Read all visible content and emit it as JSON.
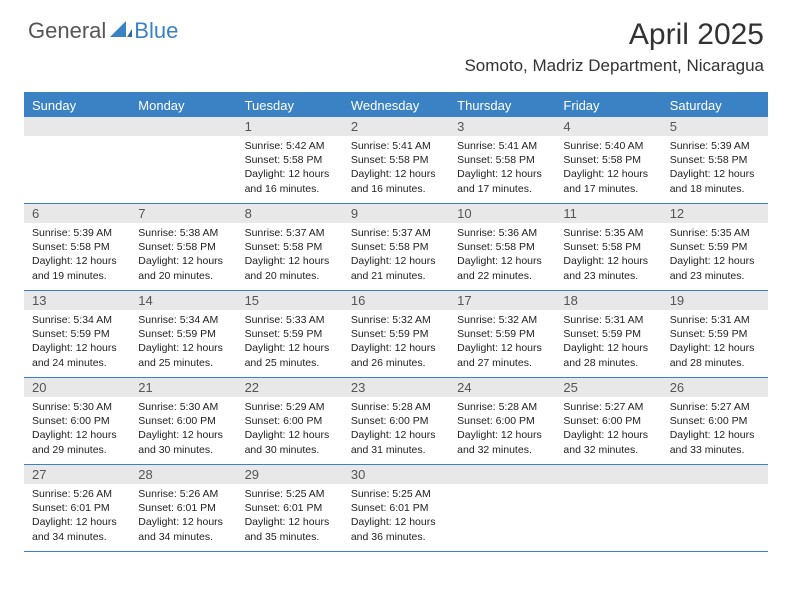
{
  "brand": {
    "general": "General",
    "blue": "Blue"
  },
  "title": "April 2025",
  "location": "Somoto, Madriz Department, Nicaragua",
  "colors": {
    "accent": "#3b82c4",
    "header_bg": "#3b82c4",
    "header_text": "#ffffff",
    "daynum_bg": "#e8e8e8",
    "text": "#222222",
    "background": "#ffffff"
  },
  "day_headers": [
    "Sunday",
    "Monday",
    "Tuesday",
    "Wednesday",
    "Thursday",
    "Friday",
    "Saturday"
  ],
  "weeks": [
    [
      null,
      null,
      {
        "n": "1",
        "sr": "5:42 AM",
        "ss": "5:58 PM",
        "dl": "12 hours and 16 minutes."
      },
      {
        "n": "2",
        "sr": "5:41 AM",
        "ss": "5:58 PM",
        "dl": "12 hours and 16 minutes."
      },
      {
        "n": "3",
        "sr": "5:41 AM",
        "ss": "5:58 PM",
        "dl": "12 hours and 17 minutes."
      },
      {
        "n": "4",
        "sr": "5:40 AM",
        "ss": "5:58 PM",
        "dl": "12 hours and 17 minutes."
      },
      {
        "n": "5",
        "sr": "5:39 AM",
        "ss": "5:58 PM",
        "dl": "12 hours and 18 minutes."
      }
    ],
    [
      {
        "n": "6",
        "sr": "5:39 AM",
        "ss": "5:58 PM",
        "dl": "12 hours and 19 minutes."
      },
      {
        "n": "7",
        "sr": "5:38 AM",
        "ss": "5:58 PM",
        "dl": "12 hours and 20 minutes."
      },
      {
        "n": "8",
        "sr": "5:37 AM",
        "ss": "5:58 PM",
        "dl": "12 hours and 20 minutes."
      },
      {
        "n": "9",
        "sr": "5:37 AM",
        "ss": "5:58 PM",
        "dl": "12 hours and 21 minutes."
      },
      {
        "n": "10",
        "sr": "5:36 AM",
        "ss": "5:58 PM",
        "dl": "12 hours and 22 minutes."
      },
      {
        "n": "11",
        "sr": "5:35 AM",
        "ss": "5:58 PM",
        "dl": "12 hours and 23 minutes."
      },
      {
        "n": "12",
        "sr": "5:35 AM",
        "ss": "5:59 PM",
        "dl": "12 hours and 23 minutes."
      }
    ],
    [
      {
        "n": "13",
        "sr": "5:34 AM",
        "ss": "5:59 PM",
        "dl": "12 hours and 24 minutes."
      },
      {
        "n": "14",
        "sr": "5:34 AM",
        "ss": "5:59 PM",
        "dl": "12 hours and 25 minutes."
      },
      {
        "n": "15",
        "sr": "5:33 AM",
        "ss": "5:59 PM",
        "dl": "12 hours and 25 minutes."
      },
      {
        "n": "16",
        "sr": "5:32 AM",
        "ss": "5:59 PM",
        "dl": "12 hours and 26 minutes."
      },
      {
        "n": "17",
        "sr": "5:32 AM",
        "ss": "5:59 PM",
        "dl": "12 hours and 27 minutes."
      },
      {
        "n": "18",
        "sr": "5:31 AM",
        "ss": "5:59 PM",
        "dl": "12 hours and 28 minutes."
      },
      {
        "n": "19",
        "sr": "5:31 AM",
        "ss": "5:59 PM",
        "dl": "12 hours and 28 minutes."
      }
    ],
    [
      {
        "n": "20",
        "sr": "5:30 AM",
        "ss": "6:00 PM",
        "dl": "12 hours and 29 minutes."
      },
      {
        "n": "21",
        "sr": "5:30 AM",
        "ss": "6:00 PM",
        "dl": "12 hours and 30 minutes."
      },
      {
        "n": "22",
        "sr": "5:29 AM",
        "ss": "6:00 PM",
        "dl": "12 hours and 30 minutes."
      },
      {
        "n": "23",
        "sr": "5:28 AM",
        "ss": "6:00 PM",
        "dl": "12 hours and 31 minutes."
      },
      {
        "n": "24",
        "sr": "5:28 AM",
        "ss": "6:00 PM",
        "dl": "12 hours and 32 minutes."
      },
      {
        "n": "25",
        "sr": "5:27 AM",
        "ss": "6:00 PM",
        "dl": "12 hours and 32 minutes."
      },
      {
        "n": "26",
        "sr": "5:27 AM",
        "ss": "6:00 PM",
        "dl": "12 hours and 33 minutes."
      }
    ],
    [
      {
        "n": "27",
        "sr": "5:26 AM",
        "ss": "6:01 PM",
        "dl": "12 hours and 34 minutes."
      },
      {
        "n": "28",
        "sr": "5:26 AM",
        "ss": "6:01 PM",
        "dl": "12 hours and 34 minutes."
      },
      {
        "n": "29",
        "sr": "5:25 AM",
        "ss": "6:01 PM",
        "dl": "12 hours and 35 minutes."
      },
      {
        "n": "30",
        "sr": "5:25 AM",
        "ss": "6:01 PM",
        "dl": "12 hours and 36 minutes."
      },
      null,
      null,
      null
    ]
  ],
  "labels": {
    "sunrise": "Sunrise:",
    "sunset": "Sunset:",
    "daylight": "Daylight:"
  }
}
